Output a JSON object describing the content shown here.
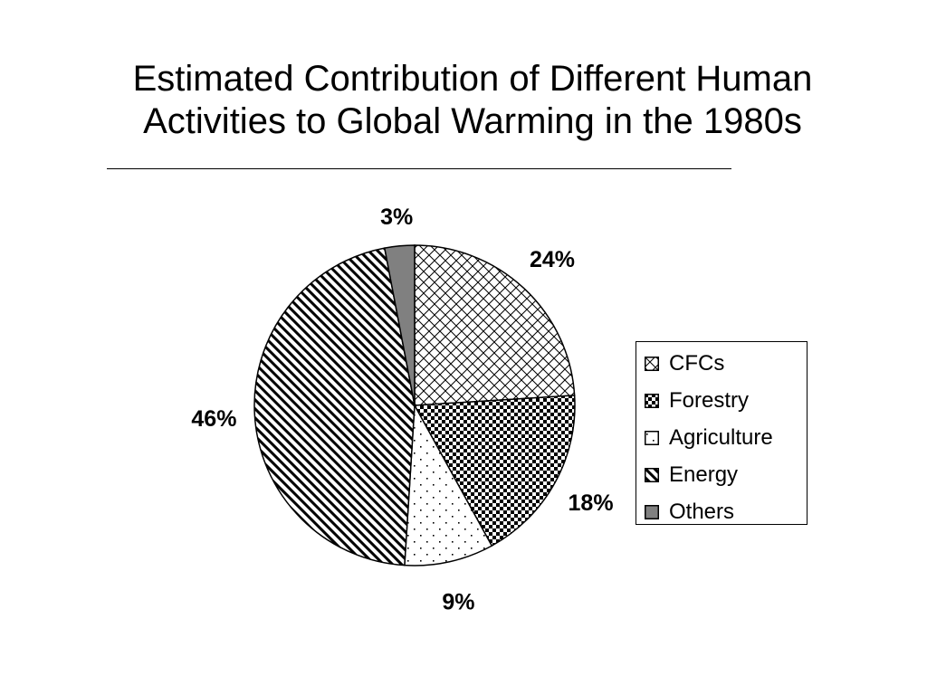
{
  "page": {
    "title_lines": [
      "Estimated Contribution of Different Human",
      "Activities to Global Warming in the 1980s"
    ]
  },
  "chart_data": {
    "type": "pie",
    "title": "Estimated Contribution of Different Human Activities to Global Warming in the 1980s",
    "legend_position": "right",
    "colors": {
      "ink": "#000000",
      "background": "#ffffff",
      "others_fill": "#808080"
    },
    "slices": [
      {
        "name": "CFCs",
        "value": 24,
        "label": "24%",
        "pattern": "diagonal-crosshatch"
      },
      {
        "name": "Forestry",
        "value": 18,
        "label": "18%",
        "pattern": "checkerboard"
      },
      {
        "name": "Agriculture",
        "value": 9,
        "label": "9%",
        "pattern": "sparse-dots"
      },
      {
        "name": "Energy",
        "value": 46,
        "label": "46%",
        "pattern": "diagonal-stripes"
      },
      {
        "name": "Others",
        "value": 3,
        "label": "3%",
        "pattern": "solid-gray"
      }
    ],
    "legend": [
      "CFCs",
      "Forestry",
      "Agriculture",
      "Energy",
      "Others"
    ]
  }
}
